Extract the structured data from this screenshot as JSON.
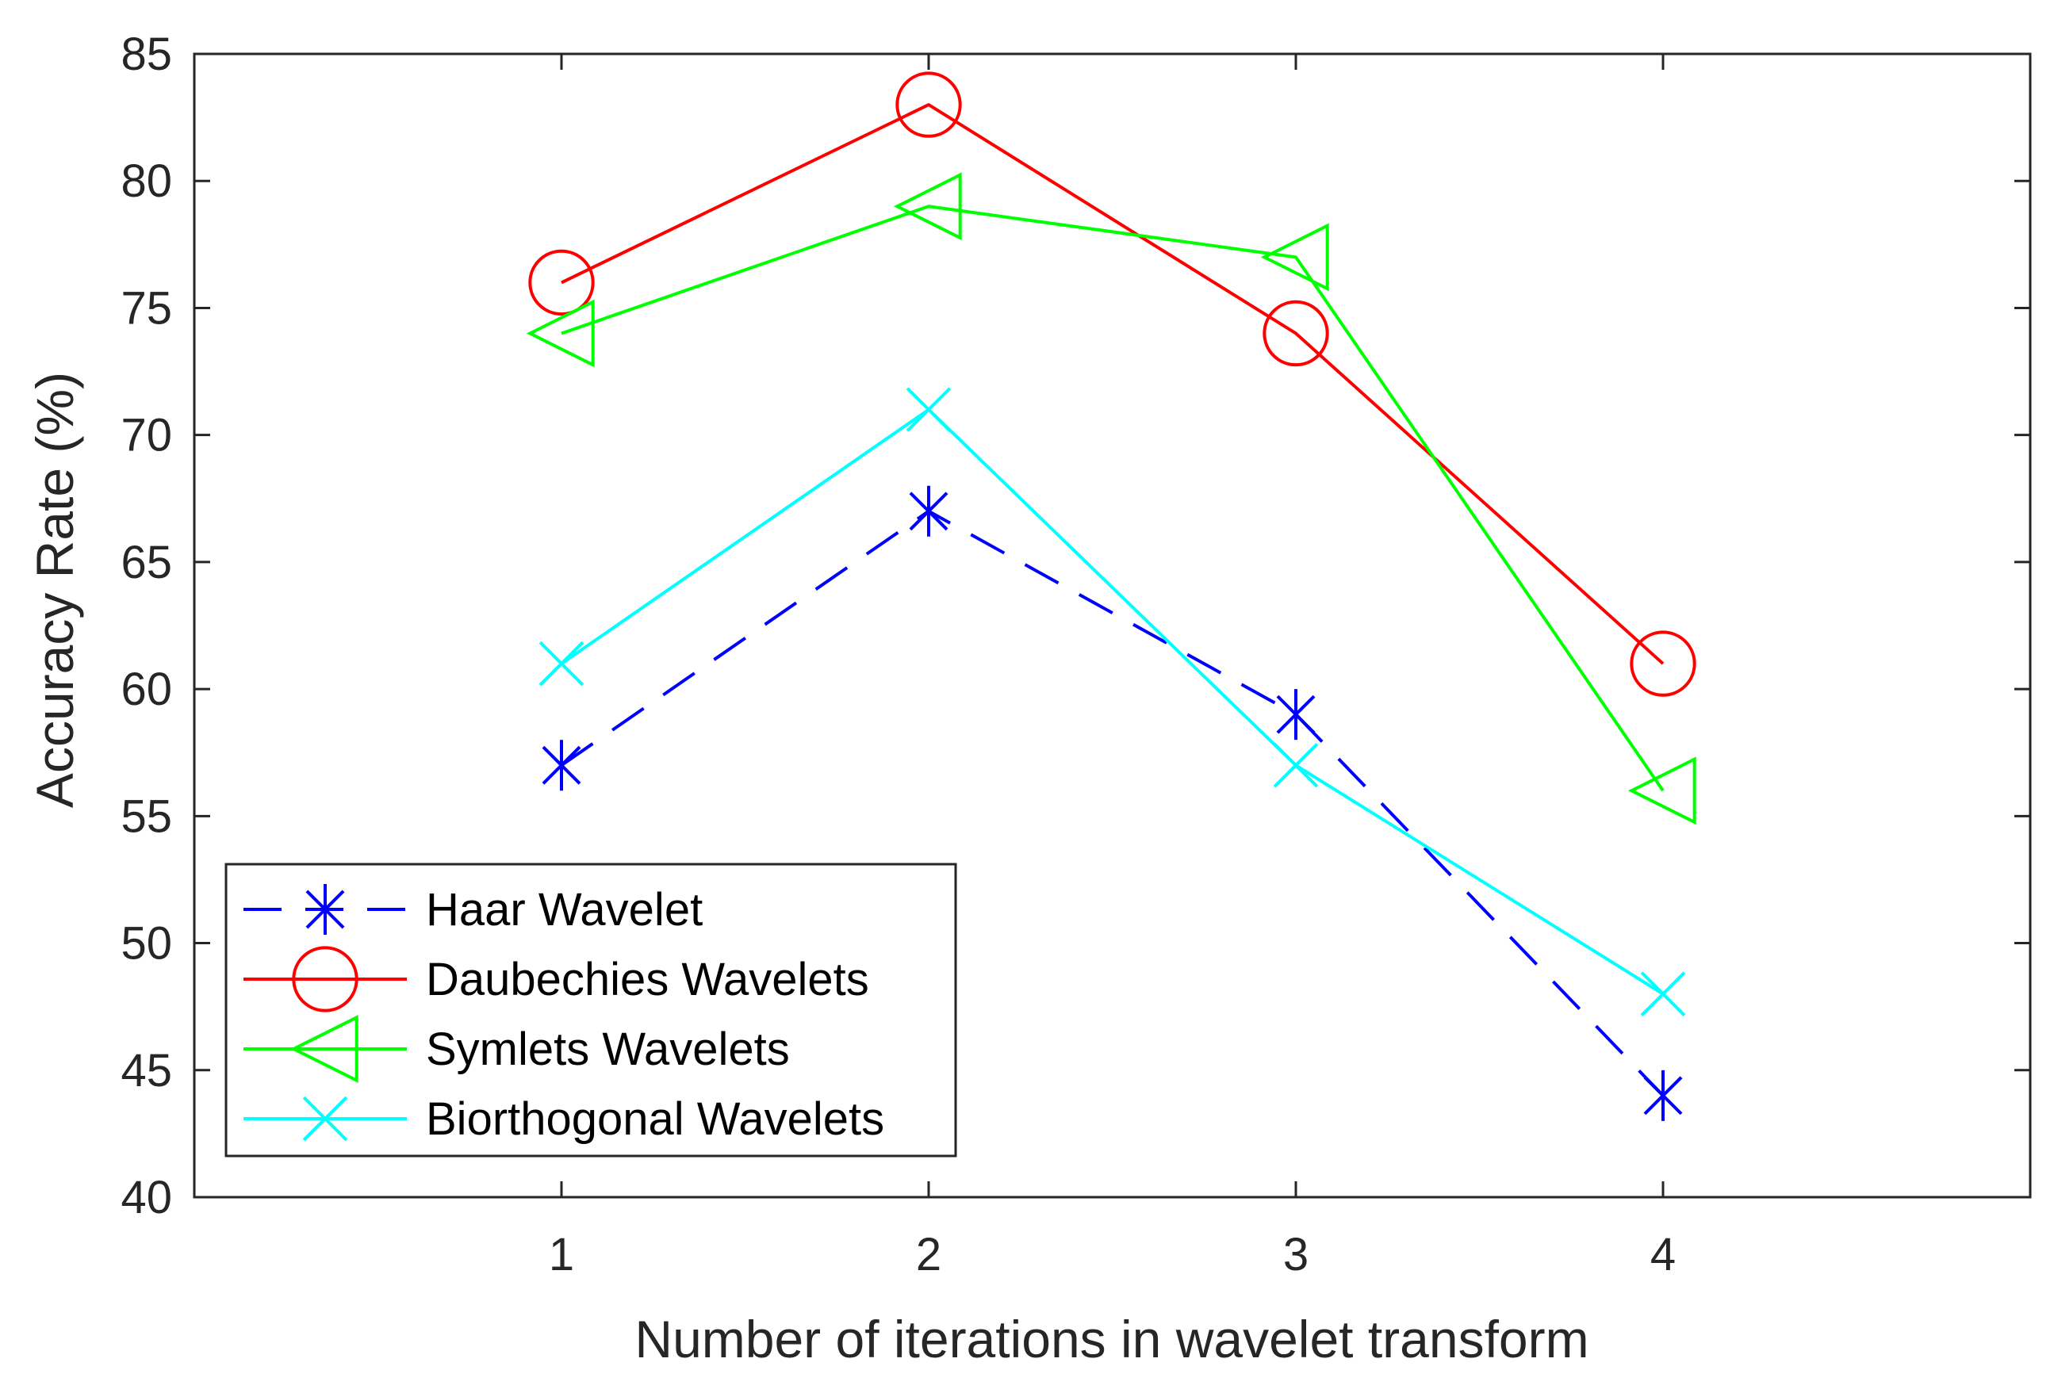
{
  "chart_data": {
    "type": "line",
    "title": "",
    "xlabel": "Number of iterations in wavelet transform",
    "ylabel": "Accuracy Rate (%)",
    "x": [
      1,
      2,
      3,
      4
    ],
    "x_ticks": [
      "1",
      "2",
      "3",
      "4"
    ],
    "xlim": [
      0,
      5
    ],
    "ylim": [
      40,
      85
    ],
    "y_ticks": [
      "40",
      "45",
      "50",
      "55",
      "60",
      "65",
      "70",
      "75",
      "80",
      "85"
    ],
    "grid": false,
    "legend_position": "bottom-left",
    "series": [
      {
        "name": "Haar Wavelet",
        "values": [
          57,
          67,
          59,
          44
        ],
        "color": "#0000ff",
        "marker": "asterisk",
        "line_style": "dashed"
      },
      {
        "name": "Daubechies Wavelets",
        "values": [
          76,
          83,
          74,
          61
        ],
        "color": "#ff0000",
        "marker": "circle",
        "line_style": "solid"
      },
      {
        "name": "Symlets Wavelets",
        "values": [
          74,
          79,
          77,
          56
        ],
        "color": "#00ff00",
        "marker": "triangle-left",
        "line_style": "solid"
      },
      {
        "name": "Biorthogonal Wavelets",
        "values": [
          61,
          71,
          57,
          48
        ],
        "color": "#00ffff",
        "marker": "x",
        "line_style": "solid"
      }
    ]
  }
}
